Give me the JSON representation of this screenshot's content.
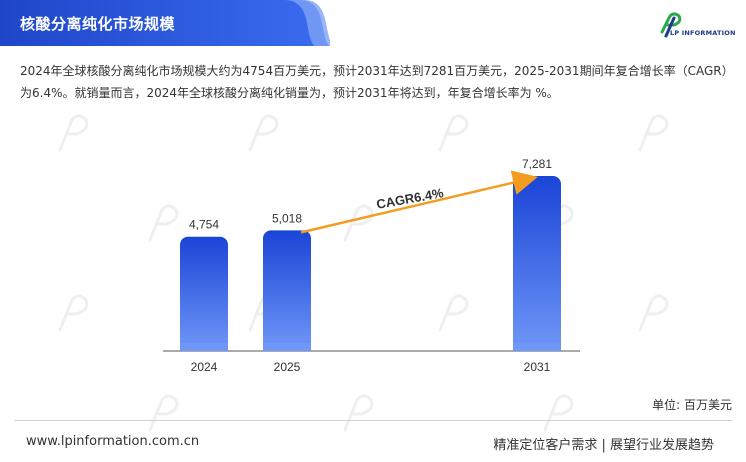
{
  "header": {
    "title": "核酸分离纯化市场规模",
    "logo_text": "LP INFORMATION"
  },
  "description": "2024年全球核酸分离纯化市场规模大约为4754百万美元，预计2031年达到7281百万美元，2025-2031期间年复合增长率（CAGR）为6.4%。就销量而言，2024年全球核酸分离纯化销量为，预计2031年将达到，年复合增长率为 %。",
  "chart_data": {
    "type": "bar",
    "categories": [
      "2024",
      "2025",
      "2031"
    ],
    "values": [
      4754,
      5018,
      7281
    ],
    "value_labels": [
      "4,754",
      "5,018",
      "7,281"
    ],
    "annotation": "CAGR6.4%",
    "ylim": [
      0,
      8000
    ],
    "colors": {
      "bar_top": "#1a44d6",
      "bar_bottom": "#6f97f7",
      "arrow": "#f39c1f"
    }
  },
  "unit_label": "单位: 百万美元",
  "footer": {
    "website": "www.lpinformation.com.cn",
    "slogan": "精准定位客户需求 | 展望行业发展趋势"
  },
  "colors": {
    "title_band": "#2a54d8",
    "accent": "#1b3a8a"
  }
}
